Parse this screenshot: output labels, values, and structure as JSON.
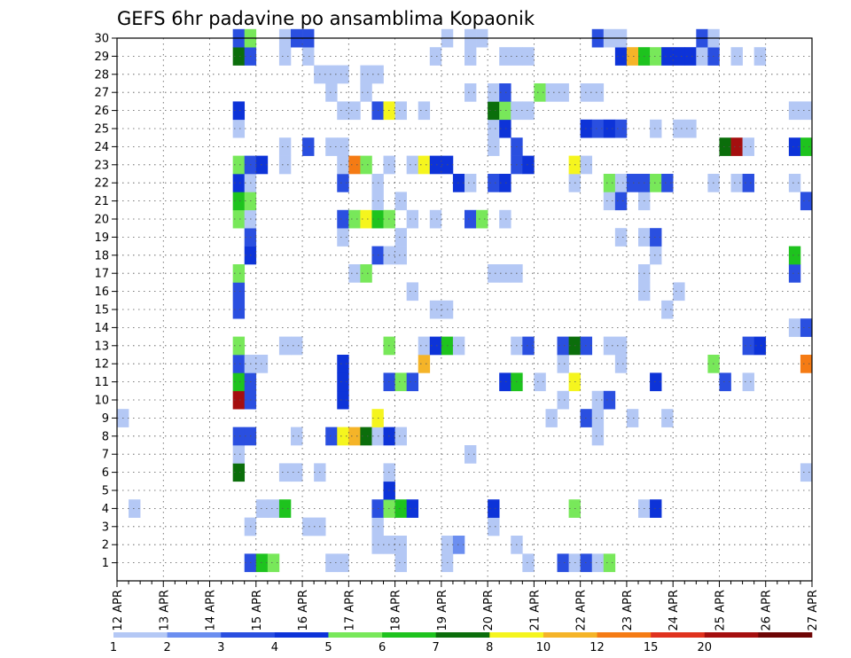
{
  "chart_data": {
    "type": "heatmap",
    "title": "GEFS 6hr padavine po ansamblima Kopaonik",
    "x_start": "12 APR 00Z",
    "x_end": "27 APR 00Z",
    "x_step": "6hr",
    "x_ticks": [
      "12 APR",
      "13 APR",
      "14 APR",
      "15 APR",
      "16 APR",
      "17 APR",
      "18 APR",
      "19 APR",
      "20 APR",
      "21 APR",
      "22 APR",
      "23 APR",
      "24 APR",
      "25 APR",
      "26 APR",
      "27 APR"
    ],
    "y_ticks": [
      1,
      2,
      3,
      4,
      5,
      6,
      7,
      8,
      9,
      10,
      11,
      12,
      13,
      14,
      15,
      16,
      17,
      18,
      19,
      20,
      21,
      22,
      23,
      24,
      25,
      26,
      27,
      28,
      29,
      30
    ],
    "y_label": "",
    "x_label": "",
    "grid": true,
    "legend": {
      "placement": "bottom",
      "labels": [
        "1",
        "2",
        "3",
        "4",
        "5",
        "6",
        "7",
        "8",
        "10",
        "12",
        "15",
        "20"
      ],
      "colors": [
        "#b4c8f5",
        "#6b8ef0",
        "#2a4fe0",
        "#0d33d8",
        "#78e85a",
        "#1ec31e",
        "#0b6e0b",
        "#f5f51e",
        "#f5b428",
        "#f57b14",
        "#e0321e",
        "#a50f0f",
        "#6e0505"
      ]
    },
    "cells": [
      [
        0,
        1,
        11,
        2
      ],
      [
        0,
        1,
        12,
        5
      ],
      [
        0,
        1,
        13,
        4
      ],
      [
        0,
        1,
        18,
        0
      ],
      [
        0,
        1,
        19,
        0
      ],
      [
        0,
        1,
        24,
        0
      ],
      [
        0,
        1,
        28,
        0
      ],
      [
        0,
        1,
        35,
        0
      ],
      [
        0,
        1,
        38,
        2
      ],
      [
        0,
        1,
        39,
        0
      ],
      [
        0,
        1,
        40,
        2
      ],
      [
        0,
        1,
        41,
        0
      ],
      [
        0,
        1,
        42,
        4
      ],
      [
        0,
        2,
        22,
        0
      ],
      [
        0,
        2,
        23,
        0
      ],
      [
        0,
        2,
        24,
        0
      ],
      [
        0,
        2,
        28,
        0
      ],
      [
        0,
        2,
        29,
        1
      ],
      [
        0,
        2,
        34,
        0
      ],
      [
        0,
        3,
        11,
        0
      ],
      [
        0,
        3,
        16,
        0
      ],
      [
        0,
        3,
        17,
        0
      ],
      [
        0,
        3,
        22,
        0
      ],
      [
        0,
        3,
        32,
        0
      ],
      [
        0,
        4,
        1,
        0
      ],
      [
        0,
        4,
        12,
        0
      ],
      [
        0,
        4,
        13,
        0
      ],
      [
        0,
        4,
        14,
        5
      ],
      [
        0,
        4,
        22,
        2
      ],
      [
        0,
        4,
        23,
        4
      ],
      [
        0,
        4,
        24,
        5
      ],
      [
        0,
        4,
        25,
        3
      ],
      [
        0,
        4,
        32,
        3
      ],
      [
        0,
        4,
        39,
        4
      ],
      [
        0,
        4,
        45,
        0
      ],
      [
        0,
        4,
        46,
        3
      ],
      [
        0,
        5,
        23,
        3
      ],
      [
        0,
        6,
        10,
        6
      ],
      [
        0,
        6,
        14,
        0
      ],
      [
        0,
        6,
        15,
        0
      ],
      [
        0,
        6,
        17,
        0
      ],
      [
        0,
        6,
        23,
        0
      ],
      [
        0,
        6,
        59,
        0
      ],
      [
        0,
        7,
        10,
        0
      ],
      [
        0,
        7,
        30,
        0
      ],
      [
        0,
        8,
        10,
        2
      ],
      [
        0,
        8,
        11,
        2
      ],
      [
        0,
        8,
        15,
        0
      ],
      [
        0,
        8,
        18,
        2
      ],
      [
        0,
        8,
        19,
        7
      ],
      [
        0,
        8,
        20,
        8
      ],
      [
        0,
        8,
        21,
        6
      ],
      [
        0,
        8,
        22,
        0
      ],
      [
        0,
        8,
        23,
        3
      ],
      [
        0,
        8,
        24,
        0
      ],
      [
        0,
        8,
        41,
        0
      ],
      [
        0,
        9,
        0,
        0
      ],
      [
        0,
        9,
        22,
        7
      ],
      [
        0,
        9,
        37,
        0
      ],
      [
        0,
        9,
        40,
        2
      ],
      [
        0,
        9,
        41,
        0
      ],
      [
        0,
        9,
        44,
        0
      ],
      [
        0,
        9,
        47,
        0
      ],
      [
        0,
        10,
        10,
        11
      ],
      [
        0,
        10,
        11,
        2
      ],
      [
        0,
        10,
        19,
        3
      ],
      [
        0,
        10,
        38,
        0
      ],
      [
        0,
        10,
        41,
        0
      ],
      [
        0,
        10,
        42,
        2
      ],
      [
        0,
        11,
        10,
        5
      ],
      [
        0,
        11,
        11,
        2
      ],
      [
        0,
        11,
        19,
        3
      ],
      [
        0,
        11,
        23,
        2
      ],
      [
        0,
        11,
        24,
        4
      ],
      [
        0,
        11,
        25,
        2
      ],
      [
        0,
        11,
        33,
        3
      ],
      [
        0,
        11,
        34,
        5
      ],
      [
        0,
        11,
        36,
        0
      ],
      [
        0,
        11,
        39,
        7
      ],
      [
        0,
        11,
        46,
        3
      ],
      [
        0,
        11,
        52,
        2
      ],
      [
        0,
        11,
        54,
        0
      ],
      [
        0,
        12,
        10,
        2
      ],
      [
        0,
        12,
        11,
        0
      ],
      [
        0,
        12,
        12,
        0
      ],
      [
        0,
        12,
        19,
        3
      ],
      [
        0,
        12,
        26,
        8
      ],
      [
        0,
        12,
        38,
        0
      ],
      [
        0,
        12,
        43,
        0
      ],
      [
        0,
        12,
        51,
        4
      ],
      [
        0,
        12,
        59,
        9
      ],
      [
        0,
        13,
        10,
        4
      ],
      [
        0,
        13,
        14,
        0
      ],
      [
        0,
        13,
        15,
        0
      ],
      [
        0,
        13,
        23,
        4
      ],
      [
        0,
        13,
        26,
        0
      ],
      [
        0,
        13,
        27,
        3
      ],
      [
        0,
        13,
        28,
        5
      ],
      [
        0,
        13,
        29,
        0
      ],
      [
        0,
        13,
        34,
        0
      ],
      [
        0,
        13,
        35,
        2
      ],
      [
        0,
        13,
        38,
        2
      ],
      [
        0,
        13,
        39,
        6
      ],
      [
        0,
        13,
        40,
        2
      ],
      [
        0,
        13,
        42,
        0
      ],
      [
        0,
        13,
        43,
        0
      ],
      [
        0,
        13,
        54,
        2
      ],
      [
        0,
        13,
        55,
        3
      ],
      [
        0,
        14,
        58,
        0
      ],
      [
        0,
        14,
        59,
        2
      ],
      [
        0,
        15,
        10,
        2
      ],
      [
        0,
        15,
        27,
        0
      ],
      [
        0,
        15,
        28,
        0
      ],
      [
        0,
        15,
        47,
        0
      ],
      [
        0,
        16,
        10,
        2
      ],
      [
        0,
        16,
        25,
        0
      ],
      [
        0,
        16,
        45,
        0
      ],
      [
        0,
        16,
        48,
        0
      ],
      [
        0,
        17,
        10,
        4
      ],
      [
        0,
        17,
        20,
        0
      ],
      [
        0,
        17,
        21,
        4
      ],
      [
        0,
        17,
        32,
        0
      ],
      [
        0,
        17,
        33,
        0
      ],
      [
        0,
        17,
        34,
        0
      ],
      [
        0,
        17,
        45,
        0
      ],
      [
        0,
        17,
        58,
        2
      ],
      [
        0,
        18,
        11,
        3
      ],
      [
        0,
        18,
        22,
        2
      ],
      [
        0,
        18,
        23,
        0
      ],
      [
        0,
        18,
        24,
        0
      ],
      [
        0,
        18,
        46,
        0
      ],
      [
        0,
        18,
        58,
        5
      ],
      [
        0,
        19,
        11,
        2
      ],
      [
        0,
        19,
        19,
        0
      ],
      [
        0,
        19,
        24,
        0
      ],
      [
        0,
        19,
        43,
        0
      ],
      [
        0,
        19,
        45,
        0
      ],
      [
        0,
        19,
        46,
        2
      ],
      [
        0,
        20,
        10,
        4
      ],
      [
        0,
        20,
        11,
        0
      ],
      [
        0,
        20,
        19,
        2
      ],
      [
        0,
        20,
        20,
        4
      ],
      [
        0,
        20,
        21,
        7
      ],
      [
        0,
        20,
        22,
        5
      ],
      [
        0,
        20,
        23,
        4
      ],
      [
        0,
        20,
        25,
        0
      ],
      [
        0,
        20,
        27,
        0
      ],
      [
        0,
        20,
        30,
        2
      ],
      [
        0,
        20,
        31,
        4
      ],
      [
        0,
        20,
        33,
        0
      ],
      [
        0,
        21,
        10,
        5
      ],
      [
        0,
        21,
        11,
        4
      ],
      [
        0,
        21,
        22,
        0
      ],
      [
        0,
        21,
        24,
        0
      ],
      [
        0,
        21,
        42,
        0
      ],
      [
        0,
        21,
        43,
        2
      ],
      [
        0,
        21,
        45,
        0
      ],
      [
        0,
        21,
        59,
        2
      ],
      [
        0,
        22,
        10,
        3
      ],
      [
        0,
        22,
        11,
        0
      ],
      [
        0,
        22,
        19,
        2
      ],
      [
        0,
        22,
        22,
        0
      ],
      [
        0,
        22,
        29,
        3
      ],
      [
        0,
        22,
        30,
        0
      ],
      [
        0,
        22,
        32,
        2
      ],
      [
        0,
        22,
        33,
        3
      ],
      [
        0,
        22,
        39,
        0
      ],
      [
        0,
        22,
        42,
        4
      ],
      [
        0,
        22,
        43,
        0
      ],
      [
        0,
        22,
        44,
        2
      ],
      [
        0,
        22,
        45,
        2
      ],
      [
        0,
        22,
        46,
        4
      ],
      [
        0,
        22,
        47,
        2
      ],
      [
        0,
        22,
        51,
        0
      ],
      [
        0,
        22,
        53,
        0
      ],
      [
        0,
        22,
        54,
        2
      ],
      [
        0,
        22,
        58,
        0
      ],
      [
        0,
        23,
        10,
        4
      ],
      [
        0,
        23,
        11,
        2
      ],
      [
        0,
        23,
        12,
        3
      ],
      [
        0,
        23,
        14,
        0
      ],
      [
        0,
        23,
        19,
        0
      ],
      [
        0,
        23,
        20,
        9
      ],
      [
        0,
        23,
        21,
        4
      ],
      [
        0,
        23,
        23,
        0
      ],
      [
        0,
        23,
        25,
        0
      ],
      [
        0,
        23,
        26,
        7
      ],
      [
        0,
        23,
        27,
        3
      ],
      [
        0,
        23,
        28,
        3
      ],
      [
        0,
        23,
        34,
        2
      ],
      [
        0,
        23,
        35,
        3
      ],
      [
        0,
        23,
        39,
        7
      ],
      [
        0,
        23,
        40,
        0
      ],
      [
        0,
        24,
        14,
        0
      ],
      [
        0,
        24,
        16,
        2
      ],
      [
        0,
        24,
        18,
        0
      ],
      [
        0,
        24,
        19,
        0
      ],
      [
        0,
        24,
        32,
        0
      ],
      [
        0,
        24,
        34,
        2
      ],
      [
        0,
        24,
        52,
        6
      ],
      [
        0,
        24,
        53,
        11
      ],
      [
        0,
        24,
        54,
        0
      ],
      [
        0,
        24,
        58,
        3
      ],
      [
        0,
        24,
        59,
        5
      ],
      [
        0,
        25,
        10,
        0
      ],
      [
        0,
        25,
        32,
        0
      ],
      [
        0,
        25,
        33,
        3
      ],
      [
        0,
        25,
        40,
        3
      ],
      [
        0,
        25,
        41,
        2
      ],
      [
        0,
        25,
        42,
        3
      ],
      [
        0,
        25,
        43,
        2
      ],
      [
        0,
        25,
        46,
        0
      ],
      [
        0,
        25,
        48,
        0
      ],
      [
        0,
        25,
        49,
        0
      ],
      [
        0,
        26,
        10,
        3
      ],
      [
        0,
        26,
        19,
        0
      ],
      [
        0,
        26,
        20,
        0
      ],
      [
        0,
        26,
        22,
        2
      ],
      [
        0,
        26,
        23,
        7
      ],
      [
        0,
        26,
        24,
        0
      ],
      [
        0,
        26,
        26,
        0
      ],
      [
        0,
        26,
        32,
        6
      ],
      [
        0,
        26,
        33,
        4
      ],
      [
        0,
        26,
        34,
        0
      ],
      [
        0,
        26,
        35,
        0
      ],
      [
        0,
        26,
        58,
        0
      ],
      [
        0,
        26,
        59,
        0
      ],
      [
        0,
        27,
        18,
        0
      ],
      [
        0,
        27,
        21,
        0
      ],
      [
        0,
        27,
        30,
        0
      ],
      [
        0,
        27,
        32,
        0
      ],
      [
        0,
        27,
        33,
        2
      ],
      [
        0,
        27,
        36,
        4
      ],
      [
        0,
        27,
        37,
        0
      ],
      [
        0,
        27,
        38,
        0
      ],
      [
        0,
        27,
        40,
        0
      ],
      [
        0,
        27,
        41,
        0
      ],
      [
        0,
        28,
        17,
        0
      ],
      [
        0,
        28,
        18,
        0
      ],
      [
        0,
        28,
        19,
        0
      ],
      [
        0,
        28,
        21,
        0
      ],
      [
        0,
        28,
        22,
        0
      ],
      [
        0,
        29,
        10,
        6
      ],
      [
        0,
        29,
        11,
        2
      ],
      [
        0,
        29,
        14,
        0
      ],
      [
        0,
        29,
        16,
        0
      ],
      [
        0,
        29,
        27,
        0
      ],
      [
        0,
        29,
        30,
        0
      ],
      [
        0,
        29,
        33,
        0
      ],
      [
        0,
        29,
        34,
        0
      ],
      [
        0,
        29,
        35,
        0
      ],
      [
        0,
        29,
        43,
        3
      ],
      [
        0,
        29,
        44,
        8
      ],
      [
        0,
        29,
        45,
        5
      ],
      [
        0,
        29,
        46,
        4
      ],
      [
        0,
        29,
        47,
        3
      ],
      [
        0,
        29,
        48,
        3
      ],
      [
        0,
        29,
        49,
        3
      ],
      [
        0,
        29,
        50,
        0
      ],
      [
        0,
        29,
        51,
        2
      ],
      [
        0,
        29,
        53,
        0
      ],
      [
        0,
        29,
        55,
        0
      ],
      [
        0,
        30,
        10,
        2
      ],
      [
        0,
        30,
        11,
        4
      ],
      [
        0,
        30,
        14,
        0
      ],
      [
        0,
        30,
        15,
        2
      ],
      [
        0,
        30,
        16,
        2
      ],
      [
        0,
        30,
        28,
        0
      ],
      [
        0,
        30,
        30,
        0
      ],
      [
        0,
        30,
        31,
        0
      ],
      [
        0,
        30,
        41,
        2
      ],
      [
        0,
        30,
        42,
        0
      ],
      [
        0,
        30,
        43,
        0
      ],
      [
        0,
        30,
        50,
        2
      ],
      [
        0,
        30,
        51,
        0
      ]
    ]
  }
}
